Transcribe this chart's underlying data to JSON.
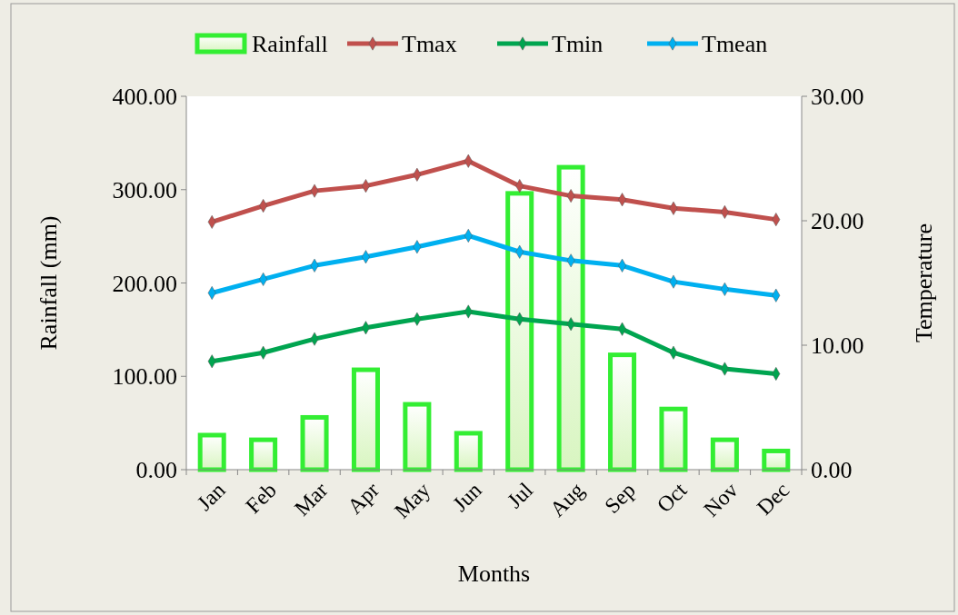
{
  "chart_data": {
    "type": "bar",
    "xlabel": "Months",
    "ylabel": "Rainfall (mm)",
    "y2label": "Temperature",
    "categories": [
      "Jan",
      "Feb",
      "Mar",
      "Apr",
      "May",
      "Jun",
      "Jul",
      "Aug",
      "Sep",
      "Oct",
      "Nov",
      "Dec"
    ],
    "series": [
      {
        "name": "Rainfall",
        "color": "#33ee33",
        "values": [
          37,
          32,
          56,
          107,
          70,
          39,
          296,
          324,
          123,
          65,
          32,
          20
        ]
      },
      {
        "name": "Tmax",
        "type": "line",
        "axis": "y2",
        "color": "#c0504d",
        "values": [
          19.9,
          21.2,
          22.4,
          22.8,
          23.7,
          24.8,
          22.8,
          22.0,
          21.7,
          21.0,
          20.7,
          20.1
        ]
      },
      {
        "name": "Tmin",
        "type": "line",
        "axis": "y2",
        "color": "#00a550",
        "values": [
          8.7,
          9.4,
          10.5,
          11.4,
          12.1,
          12.7,
          12.1,
          11.7,
          11.3,
          9.4,
          8.1,
          7.7
        ]
      },
      {
        "name": "Tmean",
        "type": "line",
        "axis": "y2",
        "color": "#00b0f0",
        "values": [
          14.2,
          15.3,
          16.4,
          17.1,
          17.9,
          18.8,
          17.5,
          16.8,
          16.4,
          15.1,
          14.5,
          14.0
        ]
      }
    ],
    "ylim": [
      0,
      400
    ],
    "yticks": [
      {
        "value": 0,
        "label": "0.00"
      },
      {
        "value": 100,
        "label": "100.00"
      },
      {
        "value": 200,
        "label": "200.00"
      },
      {
        "value": 300,
        "label": "300.00"
      },
      {
        "value": 400,
        "label": "400.00"
      }
    ],
    "y2lim": [
      0,
      30
    ],
    "y2ticks": [
      {
        "value": 0,
        "label": "0.00"
      },
      {
        "value": 10,
        "label": "10.00"
      },
      {
        "value": 20,
        "label": "20.00"
      },
      {
        "value": 30,
        "label": "30.00"
      }
    ],
    "marker": "diamond",
    "legend": "top",
    "grid": false
  }
}
